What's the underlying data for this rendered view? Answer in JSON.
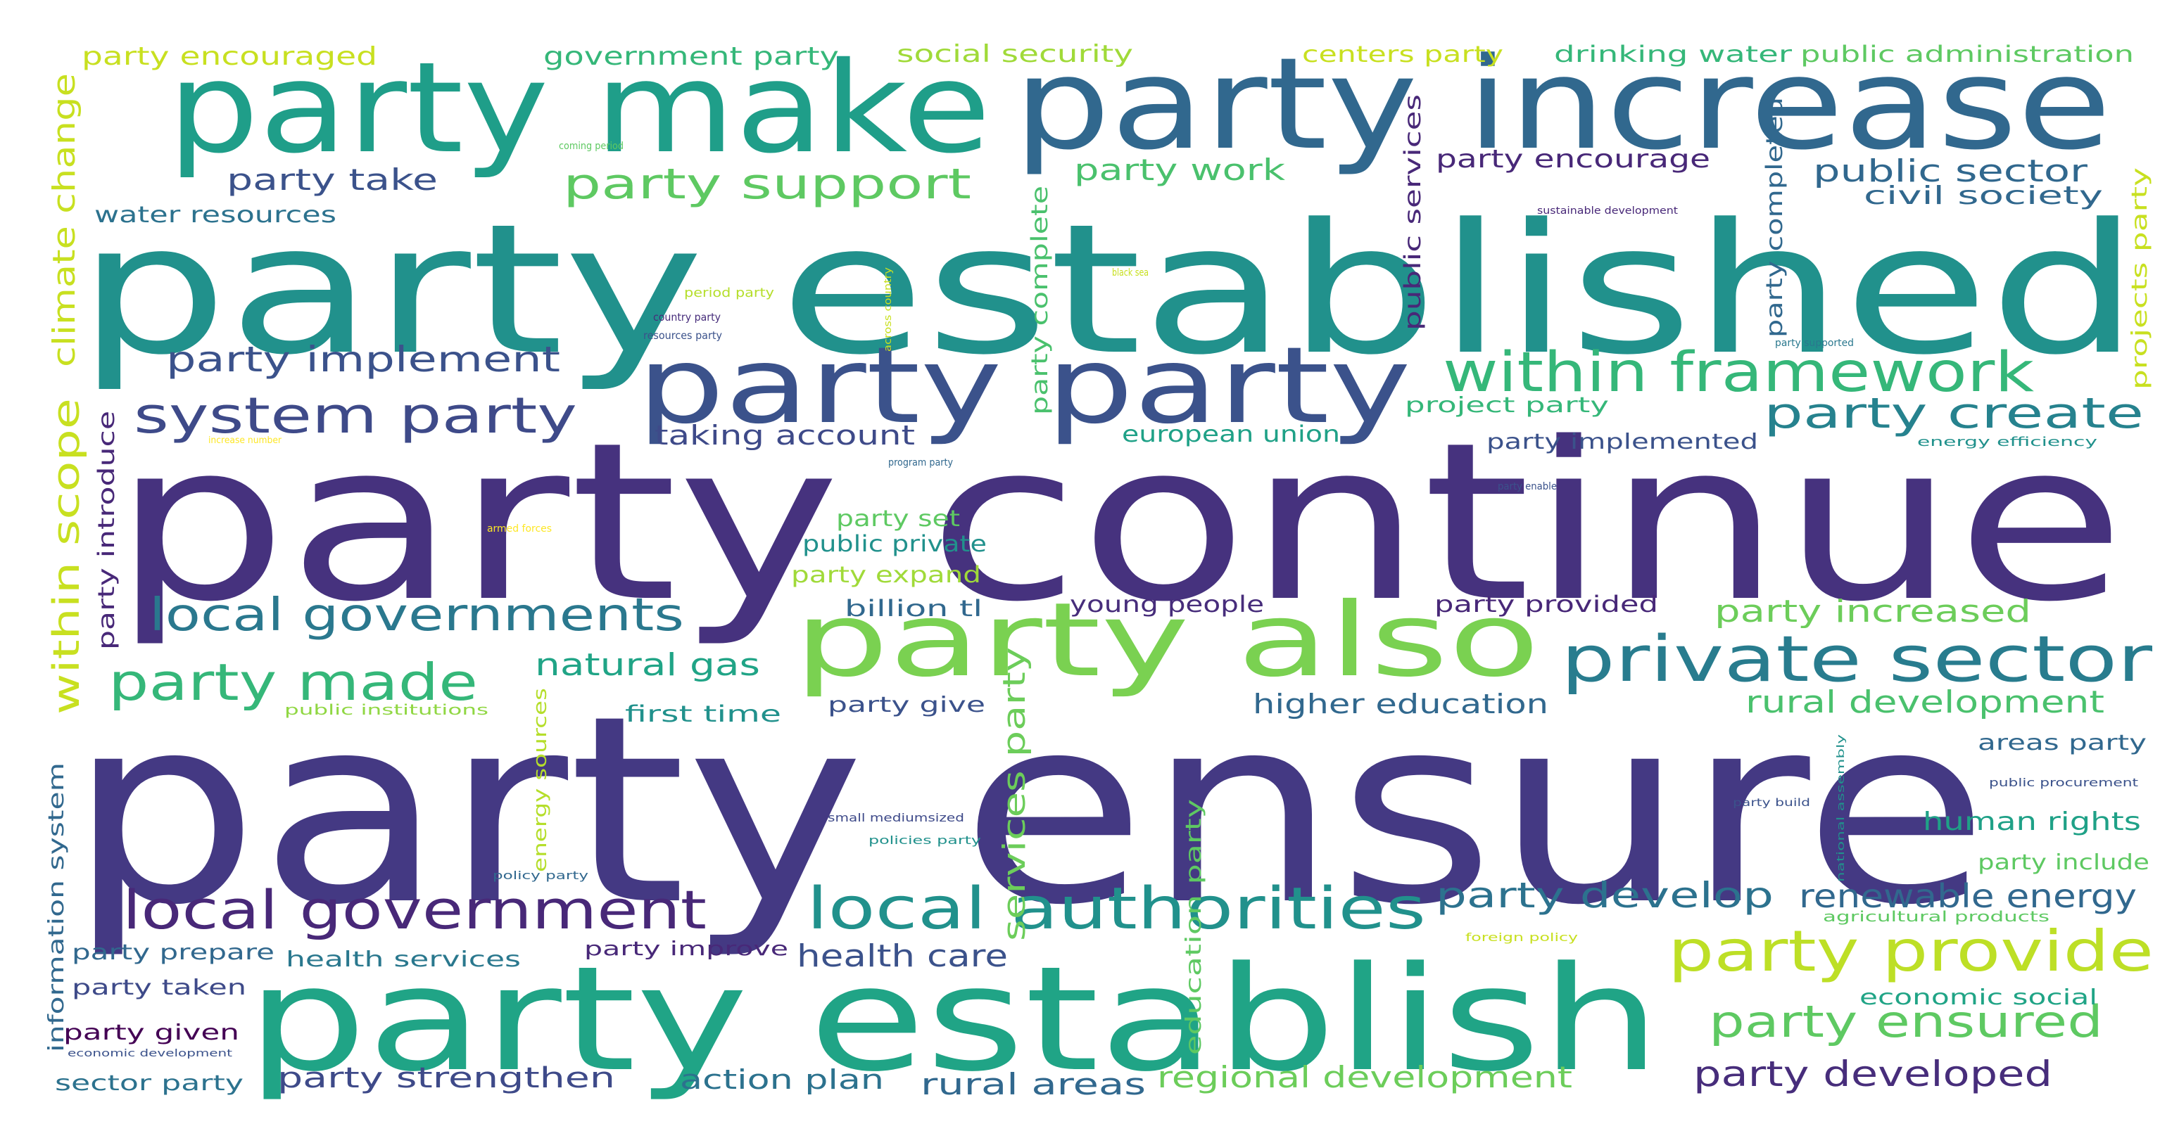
{
  "palette": {
    "background": "#ffffff",
    "dark_purple": "#443983",
    "indigo": "#3b528b",
    "blue": "#31688e",
    "teal": "#287c8e",
    "teal_green": "#21918c",
    "green_teal": "#20a486",
    "green": "#35b779",
    "light_green": "#5ec962",
    "lime": "#90d743",
    "yellow_green": "#c8e020",
    "yellow": "#fde725",
    "deep_purple": "#472d7b",
    "darkest": "#440154"
  },
  "words": [
    "party ensure",
    "party continue",
    "party established",
    "party establish",
    "party increase",
    "party make",
    "party party",
    "party also",
    "private sector",
    "local authorities",
    "local government",
    "within framework",
    "local governments",
    "system party",
    "party made",
    "party provide",
    "party create",
    "party support",
    "party ensured",
    "party implement",
    "party develop",
    "renewable energy",
    "party developed",
    "rural development",
    "party increased",
    "within scope",
    "climate change",
    "health care",
    "regional development",
    "rural areas",
    "party strengthen",
    "action plan",
    "services party",
    "public sector",
    "party work",
    "party take",
    "natural gas",
    "higher education",
    "taking account",
    "human rights",
    "civil society",
    "party encourage",
    "party encouraged",
    "government party",
    "social security",
    "centers party",
    "drinking water",
    "public administration",
    "water resources",
    "information system",
    "public services",
    "party completed",
    "party complete",
    "projects party",
    "european union",
    "project party",
    "party implemented",
    "party set",
    "public private",
    "party expand",
    "billion tl",
    "young people",
    "party provided",
    "party introduce",
    "first time",
    "party give",
    "education party",
    "energy sources",
    "areas party",
    "party include",
    "economic social",
    "party prepare",
    "health services",
    "party improve",
    "party taken",
    "party given",
    "sector party",
    "coming period",
    "sustainable development",
    "period party",
    "country party",
    "resources party",
    "across country",
    "black sea",
    "party supported",
    "increase number",
    "program party",
    "energy efficiency",
    "party enable",
    "armed forces",
    "public institutions",
    "small mediumsized",
    "policies party",
    "policy party",
    "economic development",
    "national assembly",
    "party build",
    "public procurement",
    "agricultural products",
    "foreign policy"
  ]
}
